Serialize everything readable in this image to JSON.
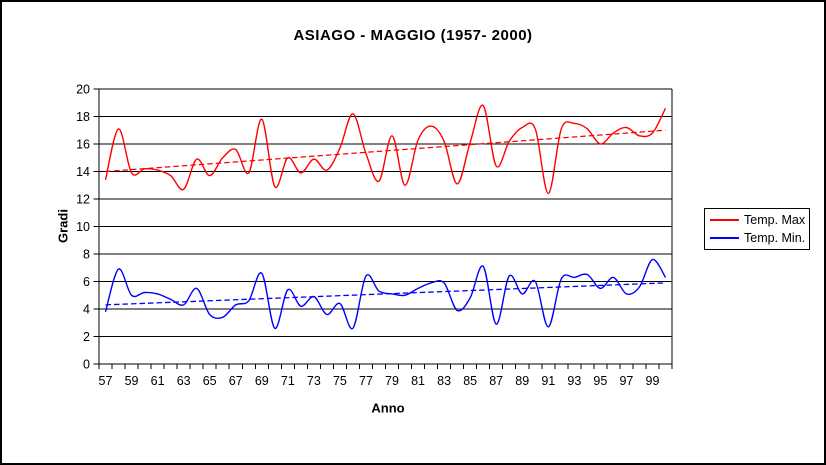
{
  "chart_data": {
    "type": "line",
    "title": "ASIAGO - MAGGIO (1957- 2000)",
    "xlabel": "Anno",
    "ylabel": "Gradi",
    "ylim": [
      0,
      20
    ],
    "ytick_step": 2,
    "grid": "horizontal",
    "legend_position": "right",
    "line_style": "smooth",
    "x_years": [
      1957,
      1958,
      1959,
      1960,
      1961,
      1962,
      1963,
      1964,
      1965,
      1966,
      1967,
      1968,
      1969,
      1970,
      1971,
      1972,
      1973,
      1974,
      1975,
      1976,
      1977,
      1978,
      1979,
      1980,
      1981,
      1982,
      1983,
      1984,
      1985,
      1986,
      1987,
      1988,
      1989,
      1990,
      1991,
      1992,
      1993,
      1994,
      1995,
      1996,
      1997,
      1998,
      1999,
      2000
    ],
    "x_tick_labels": [
      "57",
      "59",
      "61",
      "63",
      "65",
      "67",
      "69",
      "71",
      "73",
      "75",
      "77",
      "79",
      "81",
      "83",
      "85",
      "87",
      "89",
      "91",
      "93",
      "95",
      "97",
      "99"
    ],
    "series": [
      {
        "name": "Temp. Max",
        "color": "#FF0000",
        "values": [
          13.4,
          17.1,
          13.9,
          14.2,
          14.1,
          13.7,
          12.7,
          14.9,
          13.7,
          15.0,
          15.6,
          13.9,
          17.8,
          12.9,
          15.0,
          13.9,
          14.9,
          14.1,
          15.7,
          18.2,
          15.3,
          13.3,
          16.6,
          13.0,
          16.3,
          17.3,
          16.2,
          13.1,
          16.1,
          18.8,
          14.4,
          16.2,
          17.2,
          17.1,
          12.4,
          17.1,
          17.5,
          17.1,
          16.0,
          16.8,
          17.2,
          16.6,
          16.8,
          18.6
        ]
      },
      {
        "name": "Temp. Min.",
        "color": "#0000FF",
        "values": [
          3.8,
          6.9,
          5.0,
          5.2,
          5.1,
          4.7,
          4.3,
          5.5,
          3.6,
          3.4,
          4.3,
          4.6,
          6.6,
          2.6,
          5.4,
          4.2,
          4.9,
          3.6,
          4.4,
          2.6,
          6.4,
          5.3,
          5.1,
          5.0,
          5.5,
          5.9,
          5.9,
          3.9,
          4.8,
          7.1,
          2.9,
          6.4,
          5.1,
          6.0,
          2.7,
          6.2,
          6.3,
          6.5,
          5.5,
          6.3,
          5.1,
          5.6,
          7.6,
          6.3
        ]
      }
    ],
    "trendlines": [
      {
        "series": "Temp. Max",
        "color": "#FF0000",
        "style": "dashed",
        "start": 14.0,
        "end": 17.0
      },
      {
        "series": "Temp. Min.",
        "color": "#0000FF",
        "style": "dashed",
        "start": 4.3,
        "end": 5.9
      }
    ]
  }
}
